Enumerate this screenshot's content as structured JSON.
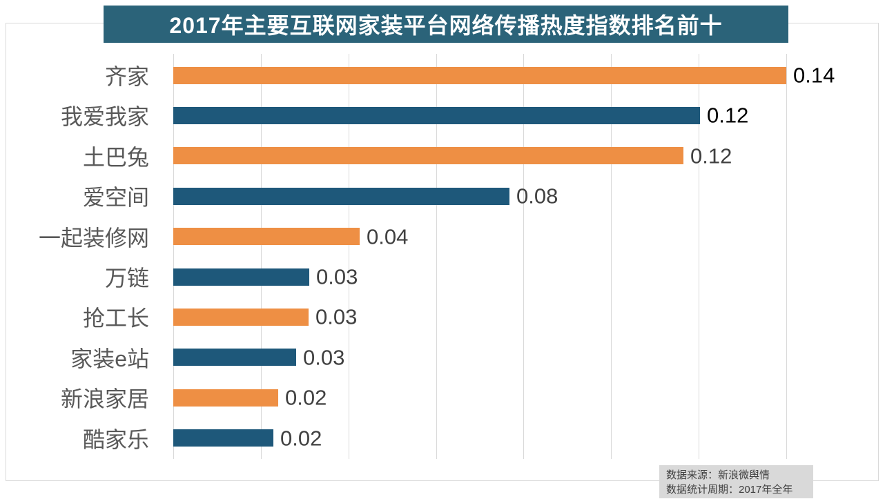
{
  "title": "2017年主要互联网家装平台网络传播热度指数排名前十",
  "colors": {
    "orange": "#EE8F44",
    "blue": "#1E587A",
    "title_bg": "#2B6379",
    "grid": "#D9D9D9",
    "category_text": "#595959",
    "value_text_default": "#404040",
    "value_text_emphasis": "#000000",
    "footer_bg": "#D9D9D9",
    "footer_text": "#404040"
  },
  "chart_data": {
    "type": "bar",
    "orientation": "horizontal",
    "title": "2017年主要互联网家装平台网络传播热度指数排名前十",
    "xlabel": "",
    "ylabel": "",
    "xlim": [
      0,
      0.14
    ],
    "grid_interval": 0.02,
    "grid_on": true,
    "legend": "none",
    "value_label_position": "outside-end",
    "categories": [
      "齐家",
      "我爱我家",
      "土巴兔",
      "爱空间",
      "一起装修网",
      "万链",
      "抢工长",
      "家装e站",
      "新浪家居",
      "酷家乐"
    ],
    "values": [
      0.14,
      0.12,
      0.12,
      0.08,
      0.04,
      0.03,
      0.03,
      0.03,
      0.02,
      0.02
    ],
    "rows": [
      {
        "category": "齐家",
        "display_value": "0.14",
        "value": 0.14,
        "bar_color": "#EE8F44",
        "value_color": "#000000"
      },
      {
        "category": "我爱我家",
        "display_value": "0.12",
        "value": 0.1203,
        "bar_color": "#1E587A",
        "value_color": "#000000"
      },
      {
        "category": "土巴兔",
        "display_value": "0.12",
        "value": 0.1165,
        "bar_color": "#EE8F44",
        "value_color": "#404040"
      },
      {
        "category": "爱空间",
        "display_value": "0.08",
        "value": 0.0767,
        "bar_color": "#1E587A",
        "value_color": "#404040"
      },
      {
        "category": "一起装修网",
        "display_value": "0.04",
        "value": 0.0426,
        "bar_color": "#EE8F44",
        "value_color": "#404040"
      },
      {
        "category": "万链",
        "display_value": "0.03",
        "value": 0.0311,
        "bar_color": "#1E587A",
        "value_color": "#404040"
      },
      {
        "category": "抢工长",
        "display_value": "0.03",
        "value": 0.0309,
        "bar_color": "#EE8F44",
        "value_color": "#404040"
      },
      {
        "category": "家装e站",
        "display_value": "0.03",
        "value": 0.0281,
        "bar_color": "#1E587A",
        "value_color": "#404040"
      },
      {
        "category": "新浪家居",
        "display_value": "0.02",
        "value": 0.024,
        "bar_color": "#EE8F44",
        "value_color": "#404040"
      },
      {
        "category": "酷家乐",
        "display_value": "0.02",
        "value": 0.0229,
        "bar_color": "#1E587A",
        "value_color": "#404040"
      }
    ]
  },
  "footer": {
    "source": "数据来源：新浪微舆情",
    "period": "数据统计周期：2017年全年"
  }
}
